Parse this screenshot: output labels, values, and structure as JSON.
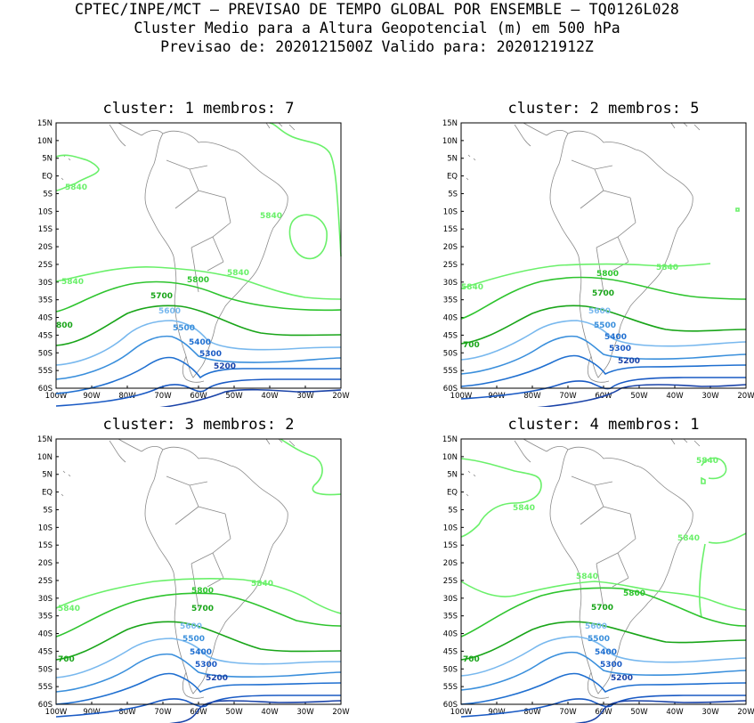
{
  "header": {
    "line1": "CPTEC/INPE/MCT – PREVISAO DE TEMPO GLOBAL POR ENSEMBLE – TQ0126L028",
    "line2": "Cluster Medio para a Altura Geopotencial (m) em 500 hPa",
    "line3": "Previsao de: 2020121500Z    Valido para: 2020121912Z"
  },
  "axes": {
    "lat_labels": [
      "15N",
      "10N",
      "5N",
      "EQ",
      "5S",
      "10S",
      "15S",
      "20S",
      "25S",
      "30S",
      "35S",
      "40S",
      "45S",
      "50S",
      "55S",
      "60S"
    ],
    "lon_labels": [
      "100W",
      "90W",
      "80W",
      "70W",
      "60W",
      "50W",
      "40W",
      "30W",
      "20W"
    ]
  },
  "colors": {
    "c5840": "#6af06a",
    "c5800": "#2ec42e",
    "c5700": "#19a519",
    "c5600": "#78b8ee",
    "c5500": "#3a8fdc",
    "c5400": "#1f6fd0",
    "c5300": "#1a5ac4",
    "c5200": "#1a43a8",
    "coast": "#8a8a8a"
  },
  "panels": [
    {
      "title": "cluster: 1   membros: 7",
      "labels": {
        "a": "5840",
        "b": "5840",
        "c": "5840",
        "d": "5840",
        "e": "5800",
        "f": "5700",
        "g": "5600",
        "h": "5500",
        "i": "5400",
        "j": "5300",
        "k": "5200",
        "m": "800"
      }
    },
    {
      "title": "cluster: 2   membros: 5",
      "labels": {
        "a": "5840",
        "b": "5840",
        "e": "5800",
        "f": "5700",
        "g": "5600",
        "h": "5500",
        "i": "5400",
        "j": "5300",
        "k": "5200",
        "m": "700"
      }
    },
    {
      "title": "cluster: 3   membros: 2",
      "labels": {
        "a": "5840",
        "b": "5840",
        "e": "5800",
        "f": "5700",
        "g": "5600",
        "h": "5500",
        "i": "5400",
        "j": "5300",
        "k": "5200",
        "m": "700"
      }
    },
    {
      "title": "cluster: 4   membros: 1",
      "labels": {
        "a": "5840",
        "b": "5840",
        "c": "5840",
        "d": "5840",
        "e": "5800",
        "f": "5700",
        "g": "5600",
        "h": "5500",
        "i": "5400",
        "j": "5300",
        "k": "5200",
        "m": "700"
      }
    }
  ]
}
